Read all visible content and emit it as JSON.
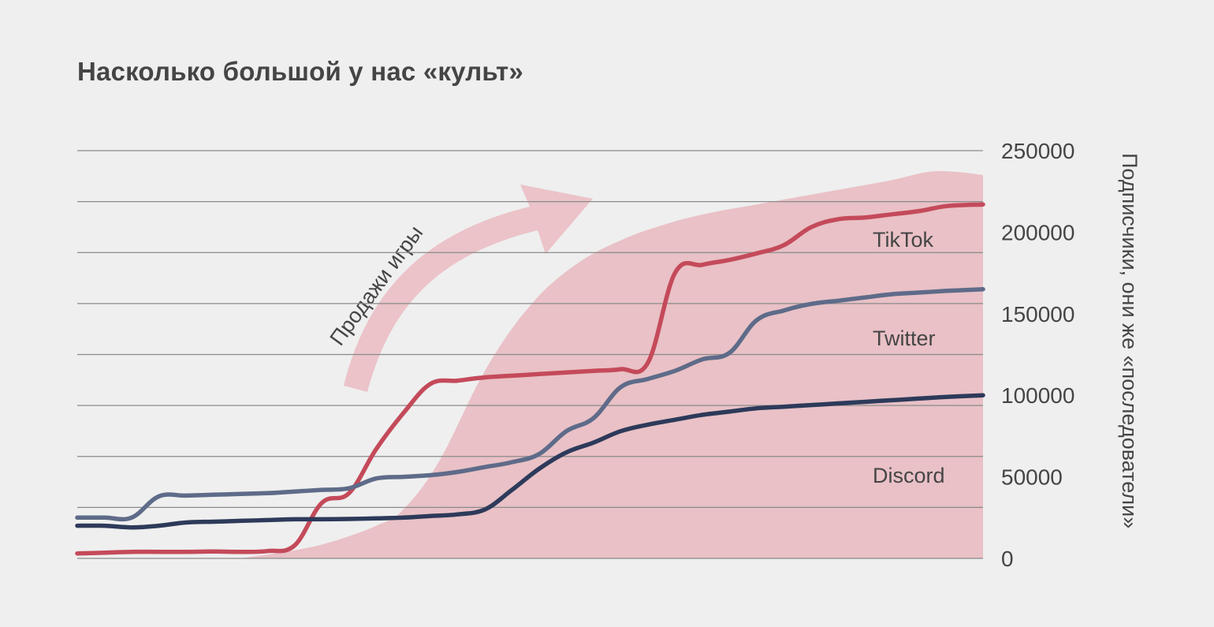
{
  "chart_data": {
    "type": "line",
    "title": "Насколько большой у нас «культ»",
    "ylabel": "Подписчики, они же «последователи»",
    "ylim": [
      0,
      250000
    ],
    "yticks": [
      0,
      50000,
      100000,
      150000,
      200000,
      250000
    ],
    "ytick_labels": [
      "0",
      "50000",
      "100000",
      "150000",
      "200000",
      "250000"
    ],
    "grid": true,
    "y_axis_side": "right",
    "x": [
      0,
      3,
      6,
      9,
      12,
      15,
      18,
      21,
      24,
      27,
      30,
      33,
      36,
      39,
      42,
      45,
      48,
      51,
      54,
      57,
      60,
      63,
      66,
      69,
      72,
      75,
      78,
      81,
      84,
      87,
      90,
      93,
      96,
      100
    ],
    "series": [
      {
        "name": "TikTok",
        "color": "#c44a5a",
        "values": [
          3000,
          3500,
          4000,
          4000,
          4000,
          4200,
          4000,
          4500,
          8000,
          34000,
          40000,
          67000,
          89000,
          107000,
          109000,
          111000,
          112000,
          113000,
          114000,
          115000,
          116000,
          120000,
          175000,
          180000,
          183000,
          187000,
          192000,
          203000,
          208000,
          209000,
          211000,
          213000,
          216000,
          217000
        ]
      },
      {
        "name": "Twitter",
        "color": "#5e6b89",
        "values": [
          25000,
          25000,
          25000,
          38000,
          38500,
          39000,
          39500,
          40000,
          41000,
          42000,
          43000,
          49000,
          50000,
          51000,
          53000,
          56000,
          59000,
          64000,
          78000,
          86000,
          105000,
          110000,
          115000,
          122000,
          126000,
          146000,
          152000,
          156000,
          158000,
          160000,
          162000,
          163000,
          164000,
          165000
        ]
      },
      {
        "name": "Discord",
        "color": "#2d3a5a",
        "values": [
          20000,
          20000,
          19000,
          20000,
          22000,
          22500,
          23000,
          23500,
          24000,
          24000,
          24200,
          24500,
          25000,
          26000,
          27000,
          30000,
          42000,
          55000,
          65000,
          71000,
          78000,
          82000,
          85000,
          88000,
          90000,
          92000,
          93000,
          94000,
          95000,
          96000,
          97000,
          98000,
          99000,
          100000
        ]
      }
    ],
    "background_area": {
      "name": "Продажи игры",
      "color": "#e9c1c6",
      "x": [
        18,
        24,
        28,
        33,
        36,
        40,
        45,
        50,
        55,
        60,
        65,
        70,
        75,
        80,
        85,
        90,
        94,
        97,
        100
      ],
      "values": [
        0,
        5000,
        10000,
        20000,
        30000,
        60000,
        115000,
        155000,
        180000,
        195000,
        205000,
        212000,
        217000,
        222000,
        227000,
        232000,
        237000,
        237000,
        235000
      ]
    },
    "annotation": {
      "text": "Продажи игры",
      "arrow": "curved arrow pointing up-right"
    }
  }
}
